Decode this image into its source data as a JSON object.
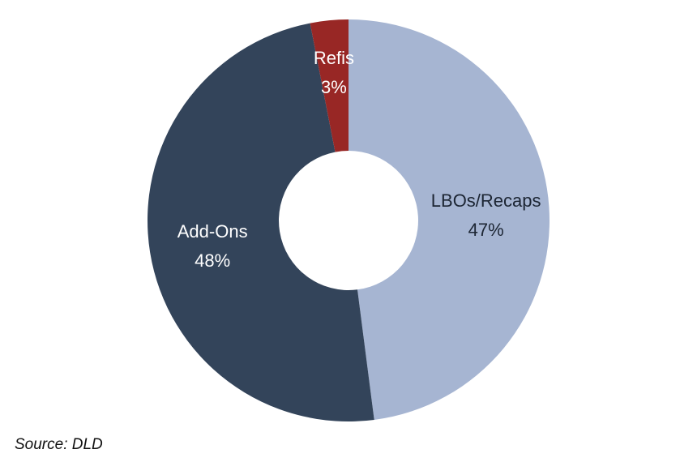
{
  "chart_data": {
    "type": "pie",
    "variant": "donut",
    "title": "",
    "slices": [
      {
        "label": "LBOs/Recaps",
        "value": 47,
        "value_label": "47%",
        "color": "#a6b5d2",
        "text_color": "#1c2533"
      },
      {
        "label": "Add-Ons",
        "value": 48,
        "value_label": "48%",
        "color": "#33445a",
        "text_color": "#ffffff"
      },
      {
        "label": "Refis",
        "value": 3,
        "value_label": "3%",
        "color": "#982725",
        "text_color": "#ffffff"
      }
    ],
    "legend": "none",
    "start_angle": "12 o'clock",
    "direction": "clockwise"
  },
  "footer": {
    "source": "Source: DLD"
  }
}
